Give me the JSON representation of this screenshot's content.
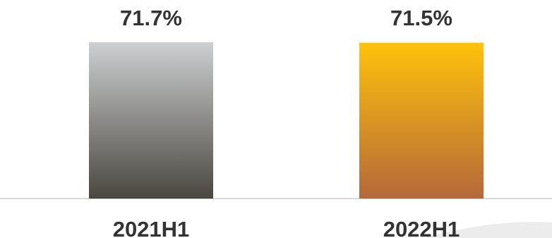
{
  "chart_data": {
    "type": "bar",
    "categories": [
      "2021H1",
      "2022H1"
    ],
    "values": [
      71.7,
      71.5
    ],
    "data_labels": [
      "71.7%",
      "71.5%"
    ],
    "value_unit": "%",
    "title": "",
    "xlabel": "",
    "ylabel": "",
    "grid": false,
    "legend": "none",
    "colors": {
      "bar_2021H1_top": "#cdcfd1",
      "bar_2021H1_bottom": "#4a4740",
      "bar_2022H1_top": "#ffc20a",
      "bar_2022H1_bottom": "#b5683a",
      "baseline": "#d9d9d9",
      "text": "#333333"
    }
  }
}
